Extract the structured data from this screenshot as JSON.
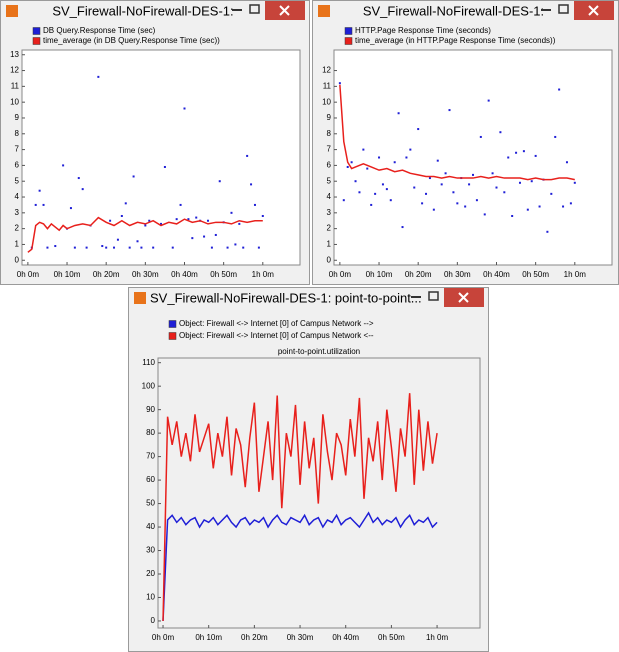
{
  "chart_data": [
    {
      "type": "scatter",
      "title": "SV_Firewall-NoFirewall-DES-1:",
      "series": [
        {
          "name": "DB Query.Response Time (sec)",
          "color": "#1f1fd6",
          "mode": "markers",
          "x": [
            1,
            2,
            3,
            4,
            5,
            7,
            9,
            10,
            11,
            12,
            13,
            14,
            15,
            16,
            18,
            19,
            20,
            21,
            22,
            23,
            24,
            25,
            26,
            27,
            28,
            29,
            30,
            31,
            32,
            34,
            35,
            37,
            38,
            39,
            40,
            41,
            42,
            43,
            44,
            45,
            46,
            47,
            48,
            49,
            50,
            51,
            52,
            53,
            54,
            55,
            56,
            57,
            58,
            59,
            60
          ],
          "values": [
            0.8,
            3.5,
            4.4,
            3.5,
            0.8,
            0.9,
            6,
            2,
            3.3,
            0.8,
            5.2,
            4.5,
            0.8,
            2.2,
            11.6,
            0.9,
            0.8,
            2.5,
            0.8,
            1.3,
            2.8,
            3.6,
            0.8,
            5.3,
            1.2,
            0.8,
            2.2,
            2.5,
            0.8,
            2.3,
            5.9,
            0.8,
            2.6,
            3.5,
            9.6,
            2.6,
            1.4,
            2.7,
            2.5,
            1.5,
            2.5,
            0.8,
            1.6,
            5,
            2.4,
            0.8,
            3,
            1,
            2.3,
            0.8,
            6.6,
            4.8,
            3.5,
            0.8,
            2.8
          ]
        },
        {
          "name": "time_average (in DB Query.Response Time (sec))",
          "color": "#e8201c",
          "mode": "line",
          "x": [
            0,
            1,
            2,
            3,
            4,
            5,
            6,
            7,
            8,
            9,
            10,
            12,
            14,
            16,
            18,
            20,
            22,
            24,
            26,
            28,
            30,
            32,
            34,
            36,
            38,
            40,
            42,
            44,
            46,
            48,
            50,
            52,
            54,
            56,
            58,
            60
          ],
          "values": [
            0.5,
            0.7,
            2.2,
            2.4,
            2.3,
            2.0,
            2.3,
            2.1,
            1.9,
            2.2,
            2.0,
            2.2,
            2.3,
            2.2,
            2.7,
            2.4,
            2.2,
            2.5,
            2.2,
            2.4,
            2.3,
            2.5,
            2.2,
            2.4,
            2.3,
            2.6,
            2.4,
            2.5,
            2.3,
            2.4,
            2.4,
            2.3,
            2.5,
            2.4,
            2.5,
            2.5
          ]
        }
      ],
      "xlim": [
        -1.5,
        69.5
      ],
      "xticks": [
        {
          "value": 0,
          "label": "0h 0m"
        },
        {
          "value": 10,
          "label": "0h 10m"
        },
        {
          "value": 20,
          "label": "0h 20m"
        },
        {
          "value": 30,
          "label": "0h 30m"
        },
        {
          "value": 40,
          "label": "0h 40m"
        },
        {
          "value": 50,
          "label": "0h 50m"
        },
        {
          "value": 60,
          "label": "1h 0m"
        }
      ],
      "ylim": [
        -0.3,
        13.3
      ],
      "yticks": [
        0,
        1,
        2,
        3,
        4,
        5,
        6,
        7,
        8,
        9,
        10,
        11,
        12,
        13
      ]
    },
    {
      "type": "scatter",
      "title": "SV_Firewall-NoFirewall-DES-1:",
      "series": [
        {
          "name": "HTTP.Page Response Time (seconds)",
          "color": "#1f1fd6",
          "mode": "markers",
          "x": [
            0,
            1,
            2,
            3,
            4,
            5,
            6,
            7,
            8,
            9,
            10,
            11,
            12,
            13,
            14,
            15,
            16,
            17,
            18,
            19,
            20,
            21,
            22,
            23,
            24,
            25,
            26,
            27,
            28,
            29,
            30,
            31,
            32,
            33,
            34,
            35,
            36,
            37,
            38,
            39,
            40,
            41,
            42,
            43,
            44,
            45,
            46,
            47,
            48,
            49,
            50,
            51,
            52,
            53,
            54,
            55,
            56,
            57,
            58,
            59,
            60
          ],
          "values": [
            11.2,
            3.8,
            5.9,
            6.2,
            5,
            4.3,
            7,
            5.8,
            3.5,
            4.2,
            6.5,
            4.8,
            4.5,
            3.8,
            6.2,
            9.3,
            2.1,
            6.5,
            7,
            4.6,
            8.3,
            3.6,
            4.2,
            5.2,
            3.2,
            6.3,
            4.8,
            5.5,
            9.5,
            4.3,
            3.6,
            5.2,
            3.4,
            4.8,
            5.4,
            3.8,
            7.8,
            2.9,
            10.1,
            5.5,
            4.6,
            8.1,
            4.3,
            6.5,
            2.8,
            6.8,
            4.9,
            6.9,
            3.2,
            5,
            6.6,
            3.4,
            5.1,
            1.8,
            4.2,
            7.8,
            10.8,
            3.4,
            6.2,
            3.6,
            4.9
          ]
        },
        {
          "name": "time_average (in HTTP.Page Response Time (seconds))",
          "color": "#e8201c",
          "mode": "line",
          "x": [
            0,
            1,
            2,
            3,
            4,
            6,
            8,
            10,
            12,
            14,
            16,
            18,
            20,
            22,
            24,
            26,
            28,
            30,
            32,
            34,
            36,
            38,
            40,
            42,
            44,
            46,
            48,
            50,
            52,
            54,
            56,
            58,
            60
          ],
          "values": [
            11.1,
            7.5,
            6.2,
            5.8,
            5.9,
            6.1,
            5.9,
            5.7,
            5.8,
            5.6,
            5.7,
            5.5,
            5.4,
            5.3,
            5.3,
            5.2,
            5.3,
            5.2,
            5.2,
            5.2,
            5.3,
            5.2,
            5.3,
            5.2,
            5.2,
            5.2,
            5.1,
            5.2,
            5.1,
            5.1,
            5.2,
            5.2,
            5.1
          ]
        }
      ],
      "xlim": [
        -1.5,
        69.5
      ],
      "xticks": [
        {
          "value": 0,
          "label": "0h 0m"
        },
        {
          "value": 10,
          "label": "0h 10m"
        },
        {
          "value": 20,
          "label": "0h 20m"
        },
        {
          "value": 30,
          "label": "0h 30m"
        },
        {
          "value": 40,
          "label": "0h 40m"
        },
        {
          "value": 50,
          "label": "0h 50m"
        },
        {
          "value": 60,
          "label": "1h 0m"
        }
      ],
      "ylim": [
        -0.3,
        13.3
      ],
      "yticks": [
        0,
        1,
        2,
        3,
        4,
        5,
        6,
        7,
        8,
        9,
        10,
        11,
        12
      ]
    },
    {
      "type": "line",
      "title": "SV_Firewall-NoFirewall-DES-1: point-to-point...",
      "subtitle": "point-to-point.utilization",
      "x": [
        0,
        1,
        2,
        3,
        4,
        5,
        6,
        7,
        8,
        9,
        10,
        11,
        12,
        13,
        14,
        15,
        16,
        17,
        18,
        19,
        20,
        21,
        22,
        23,
        24,
        25,
        26,
        27,
        28,
        29,
        30,
        31,
        32,
        33,
        34,
        35,
        36,
        37,
        38,
        39,
        40,
        41,
        42,
        43,
        44,
        45,
        46,
        47,
        48,
        49,
        50,
        51,
        52,
        53,
        54,
        55,
        56,
        57,
        58,
        59,
        60
      ],
      "series": [
        {
          "name": "Object: Firewall <-> Internet [0] of Campus Network -->",
          "color": "#1f1fd6",
          "values": [
            0,
            43,
            45,
            42,
            44,
            41,
            43,
            44,
            40,
            43,
            42,
            44,
            41,
            43,
            45,
            42,
            40,
            43,
            44,
            41,
            43,
            42,
            44,
            40,
            43,
            45,
            42,
            41,
            44,
            43,
            42,
            45,
            41,
            43,
            44,
            40,
            43,
            42,
            45,
            41,
            43,
            44,
            42,
            40,
            43,
            46,
            42,
            44,
            41,
            43,
            42,
            44,
            40,
            43,
            45,
            41,
            43,
            42,
            44,
            40,
            42
          ]
        },
        {
          "name": "Object: Firewall <-> Internet [0] of Campus Network <--",
          "color": "#e8201c",
          "values": [
            0,
            87,
            75,
            85,
            70,
            80,
            68,
            88,
            72,
            78,
            84,
            65,
            80,
            70,
            87,
            62,
            82,
            75,
            57,
            78,
            93,
            55,
            70,
            85,
            60,
            96,
            48,
            80,
            70,
            92,
            58,
            85,
            65,
            78,
            50,
            88,
            72,
            60,
            80,
            75,
            62,
            86,
            70,
            95,
            52,
            78,
            68,
            85,
            60,
            90,
            74,
            55,
            82,
            70,
            97,
            58,
            90,
            64,
            85,
            67,
            80
          ]
        }
      ],
      "xlim": [
        -1.1,
        69.4
      ],
      "xticks": [
        {
          "value": 0,
          "label": "0h 0m"
        },
        {
          "value": 10,
          "label": "0h 10m"
        },
        {
          "value": 20,
          "label": "0h 20m"
        },
        {
          "value": 30,
          "label": "0h 30m"
        },
        {
          "value": 40,
          "label": "0h 40m"
        },
        {
          "value": 50,
          "label": "0h 50m"
        },
        {
          "value": 60,
          "label": "1h 0m"
        }
      ],
      "ylim": [
        -3,
        112
      ],
      "yticks": [
        0,
        10,
        20,
        30,
        40,
        50,
        60,
        70,
        80,
        90,
        100,
        110
      ]
    }
  ]
}
